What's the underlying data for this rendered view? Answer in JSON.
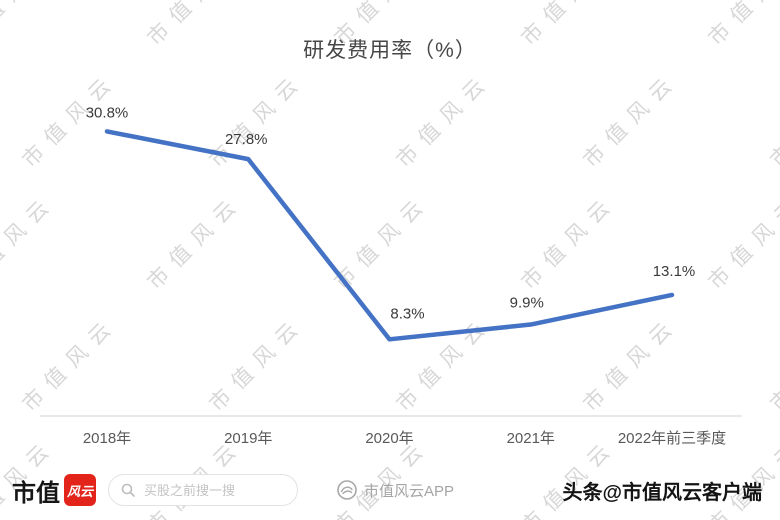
{
  "watermark": {
    "text": "市值风云"
  },
  "chart_data": {
    "type": "line",
    "title": "研发费用率（%）",
    "categories": [
      "2018年",
      "2019年",
      "2020年",
      "2021年",
      "2022年前三季度"
    ],
    "values": [
      30.8,
      27.8,
      8.3,
      9.9,
      13.1
    ],
    "labels": [
      "30.8%",
      "27.8%",
      "8.3%",
      "9.9%",
      "13.1%"
    ],
    "xlabel": "",
    "ylabel": "",
    "ylim": [
      0,
      35
    ],
    "grid": false,
    "legend": "none",
    "line_color": "#4472c4",
    "label_color": "#3a3a3a",
    "axis_color": "#d9d9d9"
  },
  "footer": {
    "brand_text": "市值",
    "brand_badge": "风云",
    "search_placeholder": "买股之前搜一搜",
    "app_label": "市值风云APP",
    "right_label": "头条@市值风云客户端"
  }
}
